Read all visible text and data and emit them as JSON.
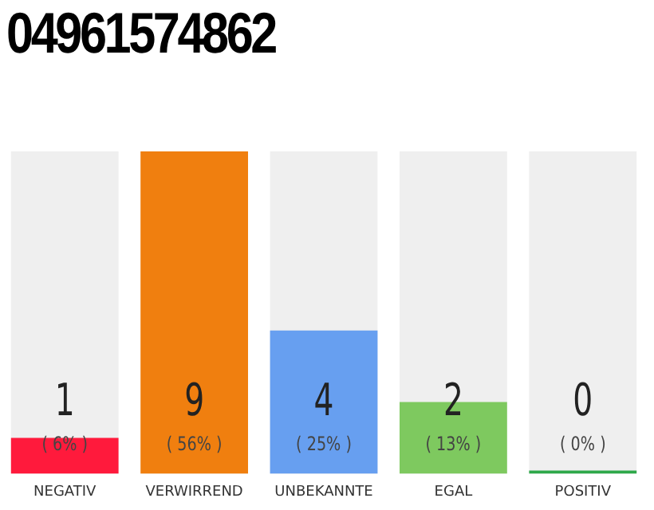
{
  "chart_data": {
    "type": "bar",
    "title": "04961574862",
    "categories": [
      "NEGATIV",
      "VERWIRREND",
      "UNBEKANNTE",
      "EGAL",
      "POSITIV"
    ],
    "values": [
      1,
      9,
      4,
      2,
      0
    ],
    "colors": [
      "#ff1a3c",
      "#f07f0f",
      "#679ff0",
      "#7ec95f",
      "#2ea84a"
    ],
    "data_labels": true,
    "annotations": [
      "( 6% )",
      "( 56% )",
      "( 25% )",
      "( 13% )",
      "( 0% )"
    ],
    "grid": false,
    "legend": false
  }
}
